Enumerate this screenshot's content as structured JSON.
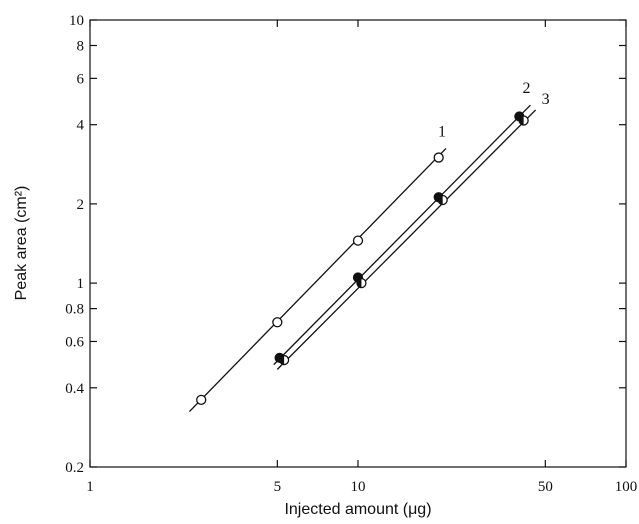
{
  "chart_data": {
    "type": "scatter",
    "title": "",
    "xlabel": "Injected amount (μg)",
    "ylabel": "Peak area (cm²)",
    "x_scale": "log",
    "y_scale": "log",
    "xlim": [
      1,
      100
    ],
    "ylim": [
      0.2,
      10
    ],
    "x_ticks": [
      {
        "value": 1,
        "label": "1"
      },
      {
        "value": 5,
        "label": "5"
      },
      {
        "value": 10,
        "label": "10"
      },
      {
        "value": 50,
        "label": "50"
      },
      {
        "value": 100,
        "label": "100"
      }
    ],
    "y_ticks": [
      {
        "value": 0.2,
        "label": "0.2"
      },
      {
        "value": 0.4,
        "label": "0.4"
      },
      {
        "value": 0.6,
        "label": "0.6"
      },
      {
        "value": 0.8,
        "label": "0.8"
      },
      {
        "value": 1,
        "label": "1"
      },
      {
        "value": 2,
        "label": "2"
      },
      {
        "value": 4,
        "label": "4"
      },
      {
        "value": 6,
        "label": "6"
      },
      {
        "value": 8,
        "label": "8"
      },
      {
        "value": 10,
        "label": "10"
      }
    ],
    "grid": false,
    "legend": "none",
    "series": [
      {
        "label": "1",
        "marker": "open-circle",
        "points": [
          {
            "x": 2.6,
            "y": 0.36
          },
          {
            "x": 5.0,
            "y": 0.71
          },
          {
            "x": 10.0,
            "y": 1.45
          },
          {
            "x": 20.0,
            "y": 3.0
          }
        ],
        "fit_line": [
          [
            2.35,
            0.325
          ],
          [
            21.3,
            3.25
          ]
        ]
      },
      {
        "label": "2",
        "marker": "filled-circle",
        "points": [
          {
            "x": 5.1,
            "y": 0.52
          },
          {
            "x": 10.0,
            "y": 1.05
          },
          {
            "x": 20.0,
            "y": 2.12
          },
          {
            "x": 40.0,
            "y": 4.3
          }
        ],
        "fit_line": [
          [
            4.85,
            0.49
          ],
          [
            44.0,
            4.75
          ]
        ]
      },
      {
        "label": "3",
        "marker": "half-filled-circle",
        "points": [
          {
            "x": 5.3,
            "y": 0.51
          },
          {
            "x": 10.3,
            "y": 1.0
          },
          {
            "x": 20.7,
            "y": 2.07
          },
          {
            "x": 41.5,
            "y": 4.15
          }
        ],
        "fit_line": [
          [
            5.0,
            0.47
          ],
          [
            46.0,
            4.55
          ]
        ]
      }
    ]
  }
}
